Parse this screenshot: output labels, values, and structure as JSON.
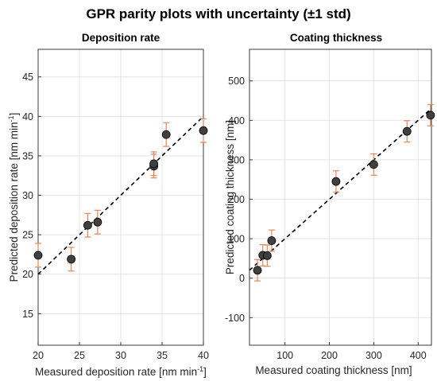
{
  "figure_title": "GPR parity plots with uncertainty (±1 std)",
  "colors": {
    "marker": "#404040",
    "errorbar": "#e2865c",
    "grid": "#dcdcdc"
  },
  "chart_data": [
    {
      "type": "scatter",
      "title": "Deposition rate",
      "xlabel": "Measured deposition rate [nm min",
      "xlabel_sup": "-1",
      "xlabel_end": "]",
      "ylabel": "Predicted deposition rate [nm min",
      "ylabel_sup": "-1",
      "ylabel_end": "]",
      "xlim": [
        20,
        40
      ],
      "ylim": [
        11,
        48.5
      ],
      "xticks": [
        20,
        25,
        30,
        35,
        40
      ],
      "yticks": [
        15,
        20,
        25,
        30,
        35,
        40,
        45
      ],
      "grid": true,
      "reference_line": [
        [
          20,
          20
        ],
        [
          40,
          40
        ]
      ],
      "points": [
        {
          "x": 20.0,
          "y": 22.4,
          "std": 1.5
        },
        {
          "x": 24.0,
          "y": 21.9,
          "std": 1.5
        },
        {
          "x": 26.0,
          "y": 26.2,
          "std": 1.5
        },
        {
          "x": 27.2,
          "y": 26.6,
          "std": 1.5
        },
        {
          "x": 34.0,
          "y": 33.7,
          "std": 1.5
        },
        {
          "x": 34.0,
          "y": 34.0,
          "std": 1.5
        },
        {
          "x": 35.5,
          "y": 37.7,
          "std": 1.5
        },
        {
          "x": 40.0,
          "y": 38.2,
          "std": 1.5
        }
      ]
    },
    {
      "type": "scatter",
      "title": "Coating thickness",
      "xlabel": "Measured coating thickness [nm]",
      "ylabel": "Predicted coating thickness [nm]",
      "xlim": [
        20,
        430
      ],
      "ylim": [
        -170,
        580
      ],
      "xticks": [
        100,
        200,
        300,
        400
      ],
      "yticks": [
        -100,
        0,
        100,
        200,
        300,
        400,
        500
      ],
      "grid": true,
      "reference_line": [
        [
          20,
          20
        ],
        [
          430,
          430
        ]
      ],
      "points": [
        {
          "x": 38,
          "y": 20,
          "std": 27
        },
        {
          "x": 50,
          "y": 58,
          "std": 27
        },
        {
          "x": 60,
          "y": 57,
          "std": 27
        },
        {
          "x": 70,
          "y": 95,
          "std": 27
        },
        {
          "x": 215,
          "y": 245,
          "std": 27
        },
        {
          "x": 300,
          "y": 288,
          "std": 27
        },
        {
          "x": 375,
          "y": 372,
          "std": 27
        },
        {
          "x": 428,
          "y": 413,
          "std": 27
        }
      ]
    }
  ]
}
